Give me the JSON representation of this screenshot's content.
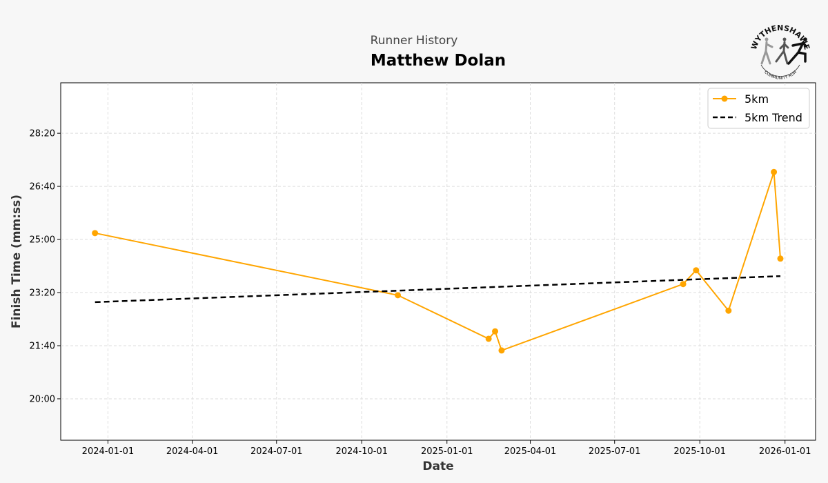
{
  "chart_data": {
    "type": "line",
    "subtitle": "Runner History",
    "title": "Matthew Dolan",
    "xlabel": "Date",
    "ylabel": "Finish Time (mm:ss)",
    "xlim": [
      "2023-11-11",
      "2026-02-03"
    ],
    "ylim_seconds": [
      1122,
      1795
    ],
    "grid": true,
    "legend_position": "top-right",
    "x_ticks": [
      "2024-01-01",
      "2024-04-01",
      "2024-07-01",
      "2024-10-01",
      "2025-01-01",
      "2025-04-01",
      "2025-07-01",
      "2025-10-01",
      "2026-01-01"
    ],
    "y_ticks": [
      {
        "seconds": 1200,
        "label": "20:00"
      },
      {
        "seconds": 1300,
        "label": "21:40"
      },
      {
        "seconds": 1400,
        "label": "23:20"
      },
      {
        "seconds": 1500,
        "label": "25:00"
      },
      {
        "seconds": 1600,
        "label": "26:40"
      },
      {
        "seconds": 1700,
        "label": "28:20"
      }
    ],
    "series": [
      {
        "name": "5km",
        "color": "#ffa500",
        "style": "solid-markers",
        "points": [
          {
            "date": "2023-12-18",
            "seconds": 1512,
            "time": "25:12"
          },
          {
            "date": "2024-11-09",
            "seconds": 1395,
            "time": "23:15"
          },
          {
            "date": "2025-02-15",
            "seconds": 1313,
            "time": "21:53"
          },
          {
            "date": "2025-02-22",
            "seconds": 1327,
            "time": "22:07"
          },
          {
            "date": "2025-03-01",
            "seconds": 1291,
            "time": "21:31"
          },
          {
            "date": "2025-09-13",
            "seconds": 1416,
            "time": "23:36"
          },
          {
            "date": "2025-09-27",
            "seconds": 1442,
            "time": "24:02"
          },
          {
            "date": "2025-11-01",
            "seconds": 1366,
            "time": "22:46"
          },
          {
            "date": "2025-12-20",
            "seconds": 1627,
            "time": "27:07"
          },
          {
            "date": "2025-12-27",
            "seconds": 1464,
            "time": "24:24"
          }
        ]
      },
      {
        "name": "5km Trend",
        "color": "#000000",
        "style": "dashed",
        "points": [
          {
            "date": "2023-12-18",
            "seconds": 1382
          },
          {
            "date": "2025-12-27",
            "seconds": 1431
          }
        ]
      }
    ]
  },
  "logo": {
    "top_text": "WYTHENSHAWE",
    "bottom_text": "COMMUNITY RUN"
  }
}
